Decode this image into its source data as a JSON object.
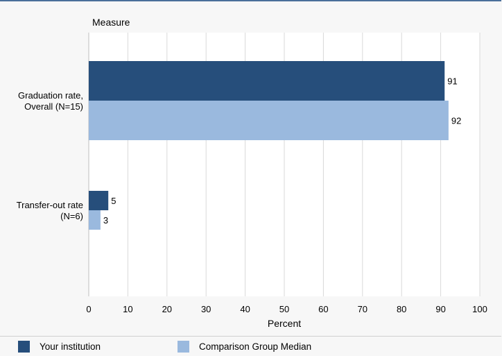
{
  "chart_data": {
    "type": "bar",
    "orientation": "horizontal",
    "y_axis_header": "Measure",
    "categories": [
      "Graduation rate, Overall (N=15)",
      "Transfer-out rate (N=6)"
    ],
    "category_lines": [
      [
        "Graduation rate,",
        "Overall (N=15)"
      ],
      [
        "Transfer-out rate",
        "(N=6)"
      ]
    ],
    "series": [
      {
        "name": "Your institution",
        "values": [
          91,
          5
        ],
        "color": "#264e7b"
      },
      {
        "name": "Comparison Group Median",
        "values": [
          92,
          3
        ],
        "color": "#9ab9de"
      }
    ],
    "xlabel": "Percent",
    "xlim": [
      0,
      100
    ],
    "xticks": [
      0,
      10,
      20,
      30,
      40,
      50,
      60,
      70,
      80,
      90,
      100
    ],
    "grid": true,
    "legend_placement": "bottom"
  }
}
